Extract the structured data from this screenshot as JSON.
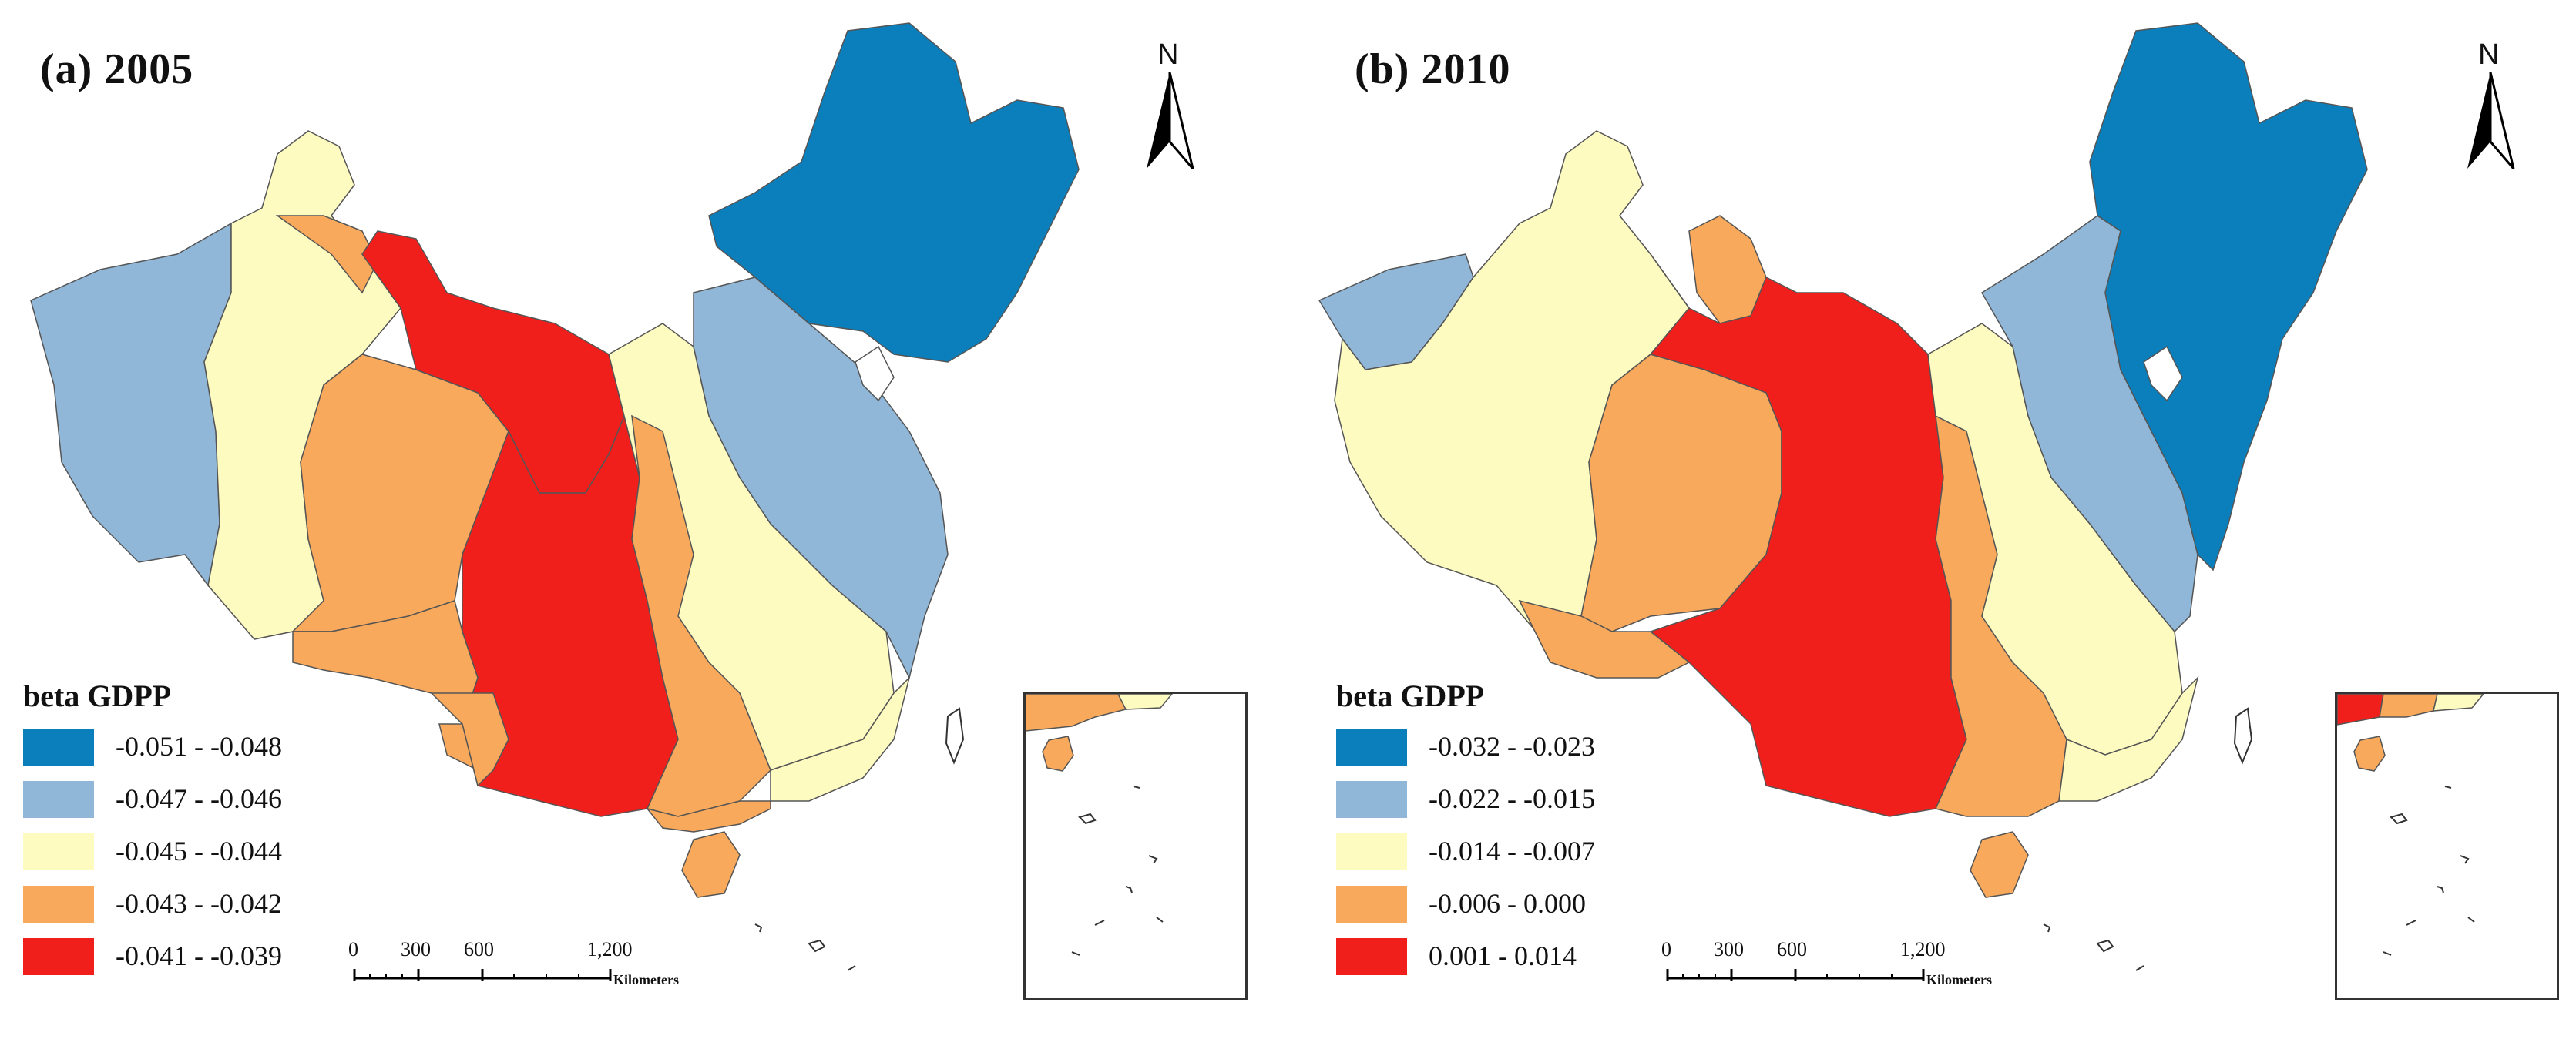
{
  "panels": [
    {
      "id": "a",
      "title": "(a) 2005",
      "legend": {
        "title": "beta GDPP",
        "classes": [
          {
            "label": "-0.051 - -0.048",
            "color": "#0a7fbc"
          },
          {
            "label": "-0.047 - -0.046",
            "color": "#91b7d8"
          },
          {
            "label": "-0.045 - -0.044",
            "color": "#fdfbc0"
          },
          {
            "label": "-0.043 - -0.042",
            "color": "#f9a95b"
          },
          {
            "label": "-0.041 - -0.039",
            "color": "#f01f1c"
          }
        ]
      },
      "scale": {
        "ticks": [
          "0",
          "300",
          "600",
          "1,200"
        ],
        "unit": "Kilometers"
      },
      "north": "N"
    },
    {
      "id": "b",
      "title": "(b) 2010",
      "legend": {
        "title": "beta GDPP",
        "classes": [
          {
            "label": "-0.032 - -0.023",
            "color": "#0a7fbc"
          },
          {
            "label": "-0.022 - -0.015",
            "color": "#91b7d8"
          },
          {
            "label": "-0.014 - -0.007",
            "color": "#fdfbc0"
          },
          {
            "label": "-0.006 - 0.000",
            "color": "#f9a95b"
          },
          {
            "label": "0.001 - 0.014",
            "color": "#f01f1c"
          }
        ]
      },
      "scale": {
        "ticks": [
          "0",
          "300",
          "600",
          "1,200"
        ],
        "unit": "Kilometers"
      },
      "north": "N"
    }
  ]
}
